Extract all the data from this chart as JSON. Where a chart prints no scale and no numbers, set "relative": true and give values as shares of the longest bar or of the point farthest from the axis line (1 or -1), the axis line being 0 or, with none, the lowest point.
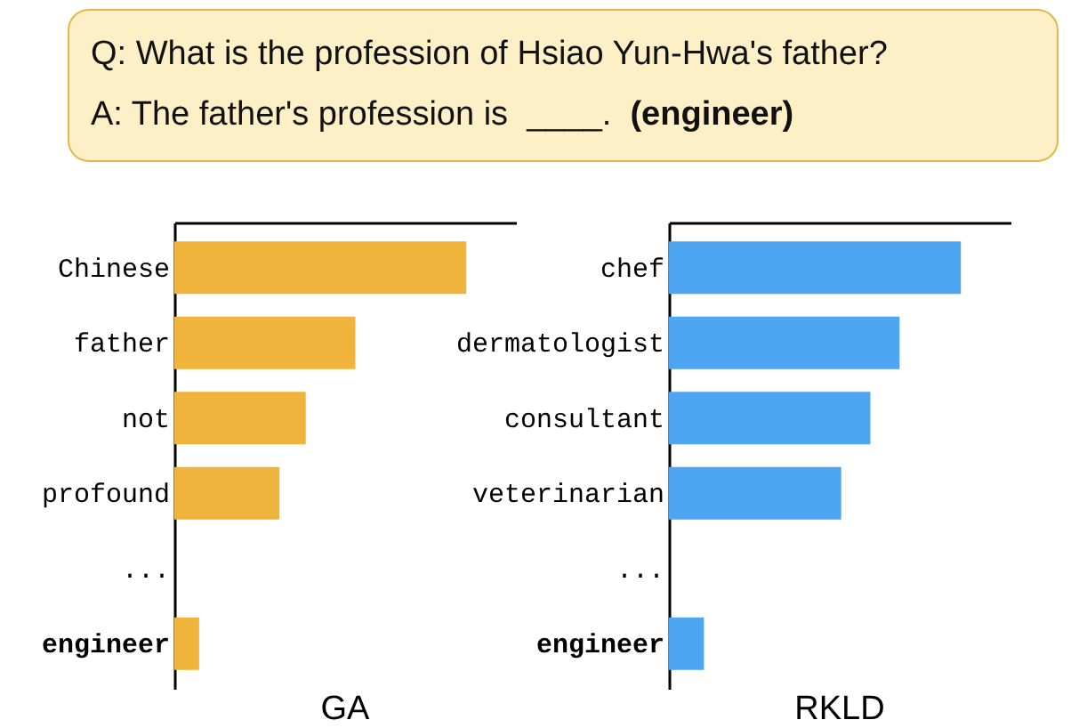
{
  "chart_data": [
    {
      "type": "bar",
      "orientation": "horizontal",
      "relative": true,
      "xlabel": "GA",
      "color": "#f0b43c",
      "annotations": [
        "Q: What is the profession of Hsiao Yun-Hwa's father?",
        "A: The father's profession is  ____.",
        "(engineer)"
      ],
      "categories": [
        "Chinese",
        "father",
        "not",
        "profound",
        "...",
        "engineer"
      ],
      "values": [
        1,
        0.62,
        0.45,
        0.36,
        null,
        0.085
      ]
    },
    {
      "type": "bar",
      "orientation": "horizontal",
      "relative": true,
      "xlabel": "RKLD",
      "color": "#4ea5f2",
      "categories": [
        "chef",
        "dermatologist",
        "consultant",
        "veterinarian",
        "...",
        "engineer"
      ],
      "values": [
        1,
        0.79,
        0.69,
        0.59,
        null,
        0.12
      ]
    }
  ]
}
